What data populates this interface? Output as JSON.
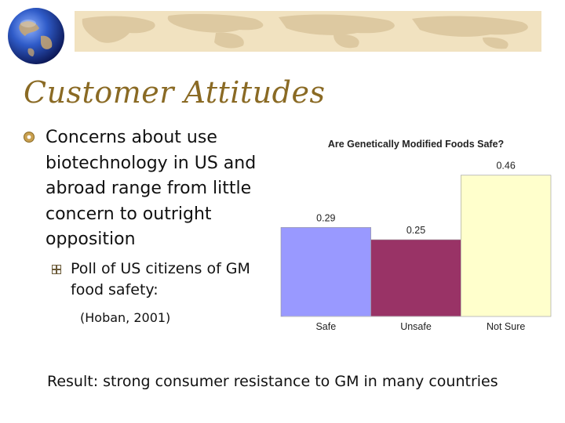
{
  "slide": {
    "title": "Customer Attitudes",
    "bullet_main": "Concerns about use biotechnology in US and abroad range from little concern to outright opposition",
    "sub_bullet": "Poll of US citizens of GM food safety:",
    "citation": "(Hoban, 2001)",
    "result": "Result: strong consumer resistance to GM in many countries"
  },
  "colors": {
    "title": "#8a6a24",
    "banner": "#f1e2c0",
    "bar_safe": "#9999ff",
    "bar_unsafe": "#993366",
    "bar_notsure": "#ffffcc"
  },
  "chart_data": {
    "type": "bar",
    "title": "Are Genetically Modified Foods Safe?",
    "categories": [
      "Safe",
      "Unsafe",
      "Not Sure"
    ],
    "values": [
      0.29,
      0.25,
      0.46
    ],
    "labels": [
      "0.29",
      "0.25",
      "0.46"
    ],
    "ylim": [
      0,
      0.5
    ],
    "xlabel": "",
    "ylabel": ""
  }
}
